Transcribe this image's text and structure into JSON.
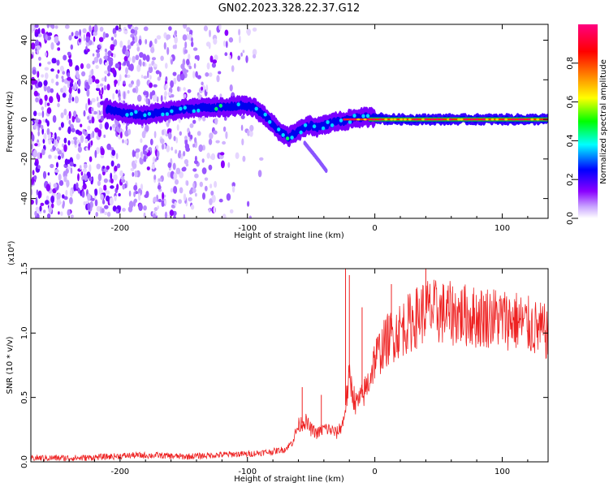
{
  "title": "GN02.2023.328.22.37.G12",
  "chart_data": [
    {
      "type": "heatmap",
      "xlabel": "Height of straight line (km)",
      "ylabel": "Frequency (Hz)",
      "xlim": [
        -270,
        136
      ],
      "ylim": [
        -50,
        48
      ],
      "xticks": [
        -200,
        -100,
        0,
        100
      ],
      "yticks": [
        -40,
        -20,
        0,
        20,
        40
      ],
      "colorbar": {
        "label": "Normalized spectral amplitude",
        "range": [
          0,
          1
        ],
        "ticks": [
          "0.0",
          "0.2",
          "0.4",
          "0.6",
          "0.8"
        ],
        "tick_values": [
          0,
          0.2,
          0.4,
          0.6,
          0.8
        ],
        "colormap": [
          "#eadcff",
          "#8a00ff",
          "#0000ff",
          "#00ffff",
          "#00ff00",
          "#ffff00",
          "#ff8000",
          "#ff0000",
          "#ff0080"
        ]
      },
      "ridge": {
        "x": [
          -210,
          -195,
          -180,
          -165,
          -150,
          -135,
          -120,
          -105,
          -95,
          -85,
          -75,
          -68,
          -60,
          -55,
          -50,
          -45,
          -40,
          -35,
          -30,
          -25,
          -20,
          -10,
          0,
          10,
          50,
          100,
          136
        ],
        "frequency": [
          5,
          3,
          2,
          4,
          5,
          6,
          6,
          7,
          6,
          1,
          -6,
          -9,
          -6,
          -4,
          -3,
          -4,
          -3,
          -2,
          -1,
          -1,
          0,
          1,
          1,
          0,
          0,
          0,
          0
        ]
      },
      "tail": {
        "x": [
          -55,
          -45,
          -38
        ],
        "frequency": [
          -12,
          -20,
          -26
        ]
      }
    },
    {
      "type": "line",
      "xlabel": "Height of straight line (km)",
      "ylabel": "SNR (10 * v/v)",
      "multiplier": "(x10⁴)",
      "xlim": [
        -270,
        136
      ],
      "ylim": [
        0,
        1.5
      ],
      "xticks": [
        -200,
        -100,
        0,
        100
      ],
      "yticks": [
        0.0,
        0.5,
        1.0,
        1.5
      ],
      "ytick_labels": [
        "0.0",
        "0.5",
        "1.0",
        "1.5"
      ],
      "series": [
        {
          "color": "#ee2222",
          "x": [
            -270,
            -250,
            -230,
            -210,
            -190,
            -170,
            -150,
            -130,
            -110,
            -100,
            -90,
            -80,
            -70,
            -65,
            -60,
            -55,
            -50,
            -45,
            -40,
            -35,
            -30,
            -25,
            -20,
            -15,
            -10,
            -5,
            0,
            10,
            20,
            30,
            40,
            50,
            60,
            70,
            80,
            90,
            100,
            110,
            120,
            130,
            136
          ],
          "values": [
            0.03,
            0.03,
            0.03,
            0.04,
            0.05,
            0.05,
            0.04,
            0.05,
            0.06,
            0.06,
            0.07,
            0.08,
            0.1,
            0.15,
            0.28,
            0.32,
            0.25,
            0.22,
            0.26,
            0.25,
            0.22,
            0.3,
            0.65,
            0.45,
            0.5,
            0.62,
            0.8,
            0.95,
            1.03,
            1.1,
            1.18,
            1.16,
            1.15,
            1.14,
            1.12,
            1.13,
            1.11,
            1.1,
            1.06,
            1.02,
            1.0
          ]
        }
      ],
      "spikes": [
        {
          "x": -23,
          "value": 1.5
        },
        {
          "x": -20,
          "value": 1.45
        },
        {
          "x": -57,
          "value": 0.58
        },
        {
          "x": -42,
          "value": 0.52
        },
        {
          "x": -10,
          "value": 1.2
        },
        {
          "x": 13,
          "value": 1.38
        },
        {
          "x": 40,
          "value": 1.5
        }
      ]
    }
  ]
}
